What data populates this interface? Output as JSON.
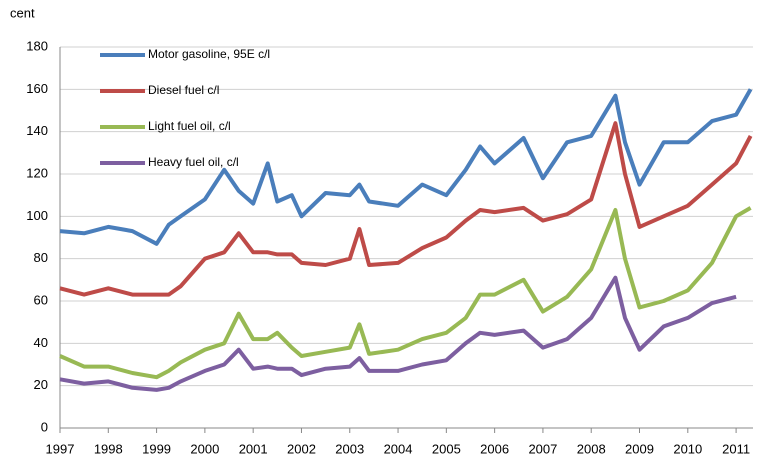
{
  "chart_data": {
    "type": "line",
    "y_label": "cent",
    "x": [
      1997,
      1997.5,
      1998,
      1998.5,
      1999,
      1999.25,
      1999.5,
      2000,
      2000.4,
      2000.7,
      2001,
      2001.3,
      2001.5,
      2001.8,
      2002,
      2002.5,
      2003,
      2003.2,
      2003.4,
      2004,
      2004.5,
      2005,
      2005.4,
      2005.7,
      2006,
      2006.6,
      2007,
      2007.5,
      2008,
      2008.5,
      2008.7,
      2009,
      2009.5,
      2010,
      2010.5,
      2011,
      2011.3
    ],
    "series": [
      {
        "name": "Motor gasoline, 95E c/l",
        "color": "#4a7ebb",
        "values": [
          93,
          92,
          95,
          93,
          87,
          96,
          100,
          108,
          122,
          112,
          106,
          125,
          107,
          110,
          100,
          111,
          110,
          115,
          107,
          105,
          115,
          110,
          122,
          133,
          125,
          137,
          118,
          135,
          138,
          157,
          135,
          115,
          135,
          135,
          145,
          148,
          160
        ]
      },
      {
        "name": "Diesel fuel c/l",
        "color": "#be4b48",
        "values": [
          66,
          63,
          66,
          63,
          63,
          63,
          67,
          80,
          83,
          92,
          83,
          83,
          82,
          82,
          78,
          77,
          80,
          94,
          77,
          78,
          85,
          90,
          98,
          103,
          102,
          104,
          98,
          101,
          108,
          144,
          120,
          95,
          100,
          105,
          115,
          125,
          138
        ]
      },
      {
        "name": "Light fuel oil, c/l",
        "color": "#98b954",
        "values": [
          34,
          29,
          29,
          26,
          24,
          27,
          31,
          37,
          40,
          54,
          42,
          42,
          45,
          38,
          34,
          36,
          38,
          49,
          35,
          37,
          42,
          45,
          52,
          63,
          63,
          70,
          55,
          62,
          75,
          103,
          80,
          57,
          60,
          65,
          78,
          100,
          104
        ]
      },
      {
        "name": "Heavy fuel oil,  c/l",
        "color": "#7d5fa0",
        "values": [
          23,
          21,
          22,
          19,
          18,
          19,
          22,
          27,
          30,
          37,
          28,
          29,
          28,
          28,
          25,
          28,
          29,
          33,
          27,
          27,
          30,
          32,
          40,
          45,
          44,
          46,
          38,
          42,
          52,
          71,
          52,
          37,
          48,
          52,
          59,
          62,
          null
        ]
      }
    ],
    "xlim": [
      1997,
      2011.35
    ],
    "xticks": [
      1997,
      1998,
      1999,
      2000,
      2001,
      2002,
      2003,
      2004,
      2005,
      2006,
      2007,
      2008,
      2009,
      2010,
      2011
    ],
    "ylim": [
      0,
      180
    ],
    "yticks": [
      0,
      20,
      40,
      60,
      80,
      100,
      120,
      140,
      160,
      180
    ],
    "grid": true
  }
}
